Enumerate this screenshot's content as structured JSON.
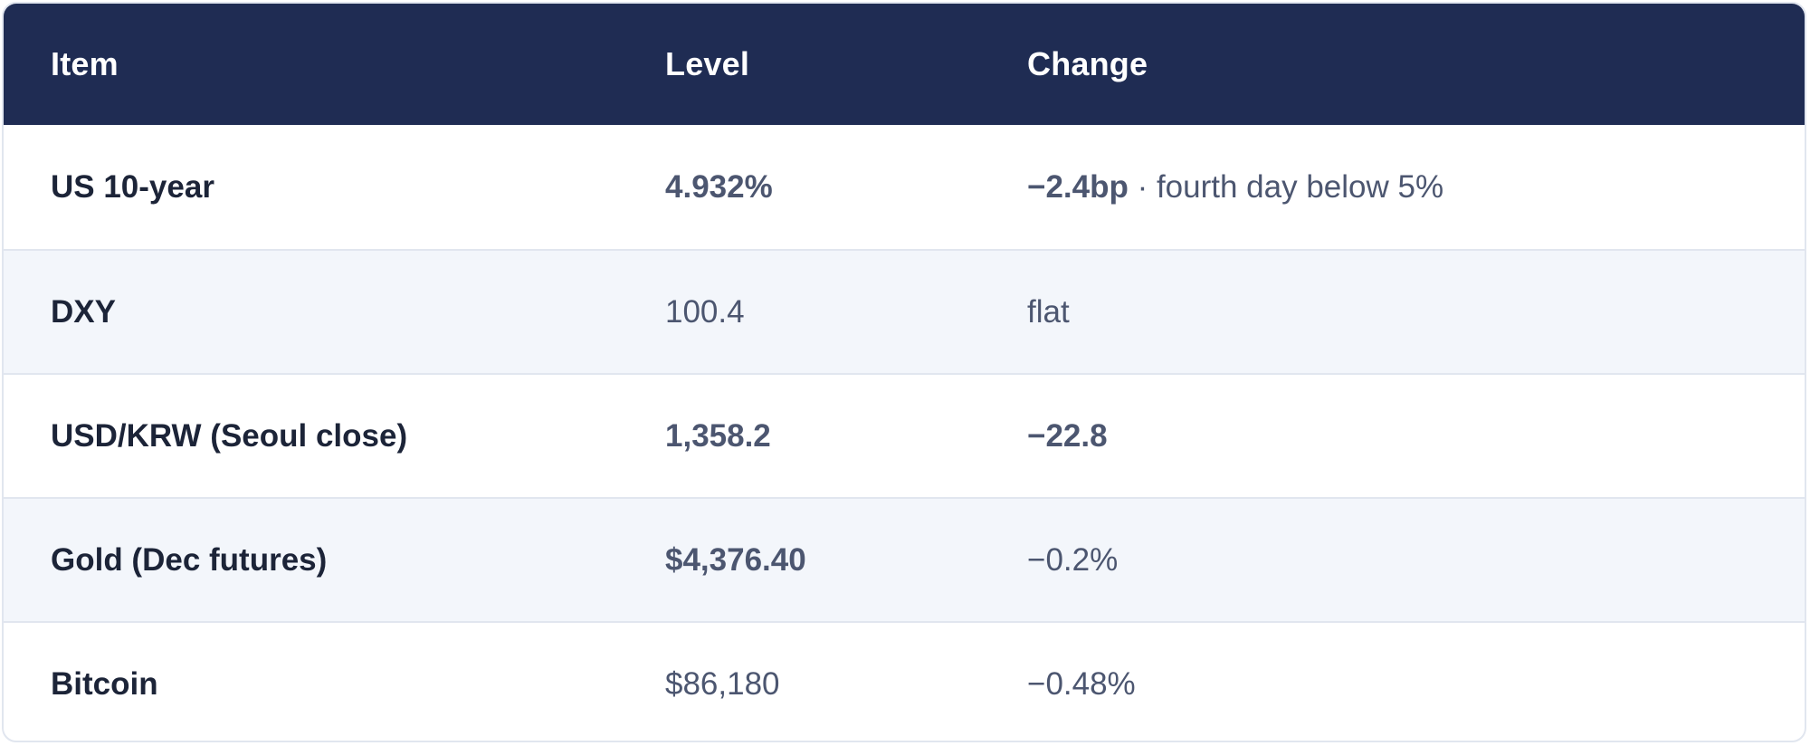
{
  "table": {
    "headers": {
      "item": "Item",
      "level": "Level",
      "change": "Change"
    },
    "rows": [
      {
        "item": "US 10-year",
        "level": "4.932%",
        "level_bold": true,
        "change_main": "−2.4bp",
        "change_bold": true,
        "change_note": " · fourth day below 5%"
      },
      {
        "item": "DXY",
        "level": "100.4",
        "level_bold": false,
        "change_main": "flat",
        "change_bold": false,
        "change_note": ""
      },
      {
        "item": "USD/KRW (Seoul close)",
        "level": "1,358.2",
        "level_bold": true,
        "change_main": "−22.8",
        "change_bold": true,
        "change_note": ""
      },
      {
        "item": "Gold (Dec futures)",
        "level": "$4,376.40",
        "level_bold": true,
        "change_main": "−0.2%",
        "change_bold": false,
        "change_note": ""
      },
      {
        "item": "Bitcoin",
        "level": "$86,180",
        "level_bold": false,
        "change_main": "−0.48%",
        "change_bold": false,
        "change_note": ""
      }
    ]
  },
  "colors": {
    "header_bg": "#1f2c53",
    "header_text": "#ffffff",
    "alt_row_bg": "#f3f6fb",
    "item_text": "#1c2438",
    "value_text": "#4c5670",
    "border": "#e1e6ef"
  }
}
